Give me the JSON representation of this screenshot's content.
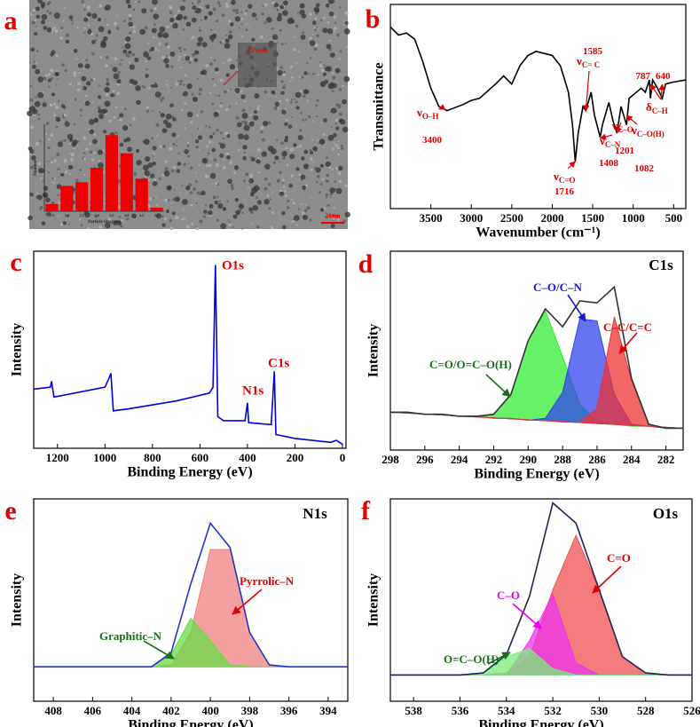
{
  "chart_data": [
    {
      "type": "bar",
      "panel_label": "a",
      "image_labels": [
        "0.21nm",
        "20nm"
      ],
      "xlabel": "Particle Size(nm)",
      "ylabel": "Number",
      "categories": [
        "1.5",
        "2.0",
        "2.5",
        "3.0",
        "3.5",
        "4.0",
        "4.5",
        "5.0"
      ],
      "values": [
        2,
        7,
        8,
        12,
        21,
        16,
        9,
        1
      ],
      "ylim": [
        0,
        24
      ],
      "color": "#ee0000"
    },
    {
      "type": "line",
      "panel_label": "b",
      "xlabel": "Wavenumber (cm⁻¹)",
      "ylabel": "Transmittance",
      "xlim": [
        4000,
        350
      ],
      "xticks": [
        3500,
        3000,
        2500,
        2000,
        1500,
        1000,
        500
      ],
      "ylim": [
        0,
        100
      ],
      "x": [
        4000,
        3900,
        3800,
        3700,
        3600,
        3500,
        3400,
        3300,
        3100,
        3000,
        2900,
        2700,
        2600,
        2500,
        2400,
        2300,
        2200,
        2100,
        2000,
        1900,
        1800,
        1750,
        1716,
        1680,
        1620,
        1585,
        1520,
        1480,
        1408,
        1380,
        1300,
        1250,
        1201,
        1150,
        1082,
        1050,
        900,
        850,
        800,
        787,
        760,
        700,
        640,
        600,
        500,
        350
      ],
      "series": [
        {
          "color": "#000000",
          "values": [
            89,
            85,
            86,
            83,
            72,
            59,
            50,
            48,
            51,
            53,
            54,
            61,
            65,
            61,
            70,
            75,
            77,
            76,
            75,
            70,
            57,
            41,
            23,
            37,
            50,
            48,
            57,
            46,
            35,
            41,
            52,
            43,
            37,
            50,
            41,
            54,
            59,
            57,
            63,
            54,
            63,
            59,
            54,
            61,
            62,
            63
          ]
        }
      ],
      "annotations": [
        {
          "symbol": "ν",
          "sub": "O–H",
          "x": 3400
        },
        {
          "symbol": "ν",
          "sub": "C= C",
          "x": 1585
        },
        {
          "symbol": "ν",
          "sub": "C=O",
          "x": 1716
        },
        {
          "symbol": "ν",
          "sub": "C–N",
          "x": 1408
        },
        {
          "symbol": "ν",
          "sub": "C–O",
          "x": 1201
        },
        {
          "symbol": "ν",
          "sub": "C–O(H)",
          "x": 1082
        },
        {
          "symbol": "δ",
          "sub": "C–H",
          "x": 787,
          "x2": 640
        }
      ]
    },
    {
      "type": "line",
      "panel_label": "c",
      "xlabel": "Binding Energy (eV)",
      "ylabel": "Intensity",
      "xlim": [
        1300,
        -15
      ],
      "xticks": [
        1200,
        1000,
        800,
        600,
        400,
        200,
        0
      ],
      "ylim": [
        0,
        100
      ],
      "x": [
        1300,
        1230,
        1225,
        1215,
        1000,
        985,
        975,
        965,
        900,
        700,
        560,
        545,
        535,
        525,
        500,
        410,
        400,
        395,
        300,
        287,
        280,
        200,
        50,
        25,
        0
      ],
      "series": [
        {
          "color": "#0000dd",
          "values": [
            30,
            31,
            34,
            26,
            31,
            35,
            38,
            19,
            20,
            24,
            28,
            31,
            93,
            16,
            14,
            14,
            23,
            13,
            12,
            39,
            7,
            5,
            3,
            4,
            2
          ]
        }
      ],
      "annotations": [
        "O1s",
        "N1s",
        "C1s"
      ]
    },
    {
      "type": "line",
      "panel_label": "d",
      "title": "C1s",
      "xlabel": "Binding Energy (eV)",
      "ylabel": "Intensity",
      "xlim": [
        298,
        281
      ],
      "xticks": [
        298,
        296,
        294,
        292,
        290,
        288,
        286,
        284,
        282
      ],
      "ylim": [
        0,
        100
      ],
      "x": [
        298,
        297,
        296,
        295,
        294,
        293,
        292,
        291,
        290,
        289,
        288,
        287,
        286,
        285,
        284,
        283,
        282,
        281
      ],
      "series": [
        {
          "name": "C=O/O=C–O(H)",
          "color": "#33ee33",
          "label_color": "#1a6e1a",
          "fill": true,
          "values": [
            19,
            19,
            18,
            18,
            17,
            17,
            18,
            28,
            55,
            70,
            47,
            23,
            14,
            13,
            12,
            12,
            11,
            11
          ]
        },
        {
          "name": "C–O/C–N",
          "color": "#3344ee",
          "label_color": "#1a1acc",
          "fill": true,
          "values": [
            19,
            19,
            18,
            18,
            17,
            17,
            16,
            16,
            15,
            16,
            29,
            66,
            65,
            28,
            13,
            12,
            11,
            11
          ]
        },
        {
          "name": "C–C/C=C",
          "color": "#ee3333",
          "label_color": "#e00000",
          "fill": true,
          "values": [
            19,
            19,
            18,
            18,
            17,
            17,
            16,
            16,
            15,
            15,
            14,
            14,
            21,
            67,
            35,
            13,
            11,
            11
          ]
        },
        {
          "color": "#333333",
          "values": [
            19,
            19,
            18,
            18,
            17,
            17,
            18,
            28,
            55,
            71,
            62,
            75,
            74,
            82,
            36,
            13,
            11,
            11
          ]
        }
      ]
    },
    {
      "type": "line",
      "panel_label": "e",
      "title": "N1s",
      "xlabel": "Binding Energy (eV)",
      "ylabel": "Intensity",
      "xlim": [
        409,
        393
      ],
      "xticks": [
        408,
        406,
        404,
        402,
        400,
        398,
        396,
        394
      ],
      "ylim": [
        0,
        100
      ],
      "x": [
        409,
        408,
        407,
        406,
        405,
        404,
        403,
        402,
        401,
        400,
        399,
        398,
        397,
        396,
        395,
        394,
        393
      ],
      "series": [
        {
          "name": "Pyrrolic–N",
          "color": "#f08080",
          "label_color": "#e00000",
          "fill": true,
          "values": [
            17,
            17,
            17,
            17,
            17,
            17,
            17,
            18,
            34,
            75,
            75,
            34,
            18,
            17,
            17,
            17,
            17
          ]
        },
        {
          "name": "Graphitic–N",
          "color": "#66dd44",
          "label_color": "#1a6e1a",
          "fill": true,
          "values": [
            17,
            17,
            17,
            17,
            17,
            17,
            17,
            23,
            41,
            30,
            18,
            17,
            17,
            17,
            17,
            17,
            17
          ]
        },
        {
          "color": "#2233cc",
          "values": [
            17,
            17,
            17,
            17,
            17,
            17,
            17,
            24,
            58,
            88,
            76,
            34,
            18,
            17,
            17,
            17,
            17
          ]
        }
      ]
    },
    {
      "type": "line",
      "panel_label": "f",
      "title": "O1s",
      "xlabel": "Binding Energy (eV)",
      "ylabel": "Intensity",
      "xlim": [
        539,
        526
      ],
      "xticks": [
        538,
        536,
        534,
        532,
        530,
        528,
        526
      ],
      "ylim": [
        0,
        100
      ],
      "x": [
        539,
        538,
        537,
        536,
        535,
        534,
        533,
        532,
        531,
        530,
        529,
        528,
        527,
        526
      ],
      "series": [
        {
          "name": "C=O",
          "color": "#f05050",
          "label_color": "#e00000",
          "fill": true,
          "values": [
            13,
            13,
            13,
            13,
            13,
            14,
            22,
            55,
            82,
            55,
            22,
            14,
            13,
            13
          ]
        },
        {
          "name": "C–O",
          "color": "#ee33ee",
          "label_color": "#ee00ee",
          "fill": true,
          "values": [
            13,
            13,
            13,
            13,
            13,
            13,
            30,
            53,
            19,
            13,
            13,
            13,
            13,
            13
          ]
        },
        {
          "name": "O=C–O(H)",
          "color": "#77ee77",
          "label_color": "#1a6e1a",
          "fill": true,
          "values": [
            13,
            13,
            13,
            13,
            14,
            22,
            26,
            16,
            13,
            13,
            13,
            13,
            13,
            13
          ]
        },
        {
          "color": "#222255",
          "values": [
            13,
            13,
            13,
            13,
            14,
            23,
            52,
            98,
            88,
            55,
            22,
            14,
            13,
            13
          ]
        }
      ]
    }
  ]
}
